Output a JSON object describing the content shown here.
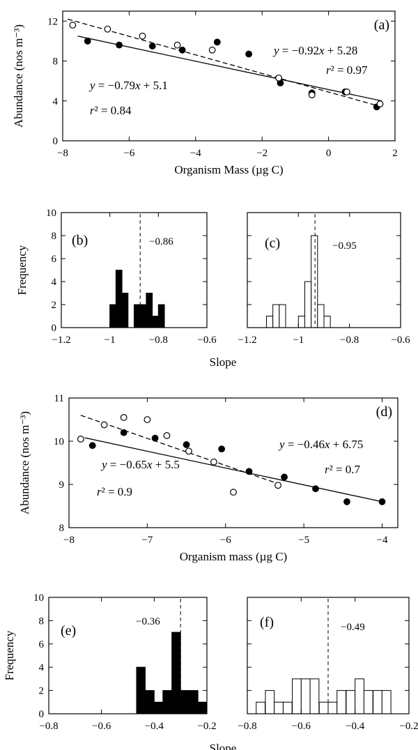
{
  "chart_data": [
    {
      "panel": "(a)",
      "type": "scatter",
      "xlabel": "Organism Mass (µg C)",
      "ylabel": "Abundance (nos m⁻³)",
      "xlim": [
        -8,
        2
      ],
      "ylim": [
        0,
        13
      ],
      "xticks": [
        "−8",
        "−6",
        "−4",
        "−2",
        "0",
        "2"
      ],
      "yticks": [
        "0",
        "4",
        "8",
        "12"
      ],
      "series": [
        {
          "marker": "filled",
          "line": "solid",
          "points": [
            [
              -7.25,
              10.0
            ],
            [
              -6.3,
              9.6
            ],
            [
              -5.3,
              9.5
            ],
            [
              -4.4,
              9.1
            ],
            [
              -3.35,
              9.9
            ],
            [
              -2.4,
              8.7
            ],
            [
              -1.45,
              5.8
            ],
            [
              -0.5,
              4.8
            ],
            [
              0.5,
              4.9
            ],
            [
              1.45,
              3.4
            ]
          ],
          "fit": {
            "slope": -0.79,
            "intercept": 5.1
          }
        },
        {
          "marker": "open",
          "line": "dashed",
          "points": [
            [
              -7.7,
              11.6
            ],
            [
              -6.65,
              11.2
            ],
            [
              -5.6,
              10.5
            ],
            [
              -4.55,
              9.6
            ],
            [
              -3.5,
              9.1
            ],
            [
              -1.5,
              6.3
            ],
            [
              -0.5,
              4.6
            ],
            [
              0.55,
              4.9
            ],
            [
              1.55,
              3.7
            ]
          ],
          "fit": {
            "slope": -0.92,
            "intercept": 5.28
          }
        }
      ],
      "annotations": [
        {
          "parts": [
            "y",
            " = −0.92",
            "x",
            " + 5.28"
          ]
        },
        {
          "parts": [
            "r",
            "² = 0.97"
          ]
        },
        {
          "parts": [
            "y",
            " = −0.79",
            "x",
            " + 5.1"
          ]
        },
        {
          "parts": [
            "r",
            "² = 0.84"
          ]
        }
      ]
    },
    {
      "panel": "(b)",
      "type": "bar",
      "style": "filled",
      "xlabel": "Slope",
      "ylabel": "Frequency",
      "xlim": [
        -1.2,
        -0.6
      ],
      "ylim": [
        0,
        10
      ],
      "xticks": [
        "−1.2",
        "−1",
        "−0.8",
        "−0.6"
      ],
      "yticks": [
        "0",
        "2",
        "4",
        "6",
        "8",
        "10"
      ],
      "bin_width": 0.025,
      "bins": [
        [
          -1.0,
          2
        ],
        [
          -0.975,
          5
        ],
        [
          -0.95,
          3
        ],
        [
          -0.9,
          2
        ],
        [
          -0.875,
          2
        ],
        [
          -0.85,
          3
        ],
        [
          -0.825,
          1
        ],
        [
          -0.8,
          2
        ]
      ],
      "reference_line": -0.875,
      "annotation": "−0.86"
    },
    {
      "panel": "(c)",
      "type": "bar",
      "style": "open",
      "xlabel": "",
      "ylabel": "",
      "xlim": [
        -1.2,
        -0.6
      ],
      "ylim": [
        0,
        10
      ],
      "xticks": [
        "−1.2",
        "−1",
        "−0.8",
        "−0.6"
      ],
      "yticks": [],
      "bin_width": 0.025,
      "bins": [
        [
          -1.125,
          1
        ],
        [
          -1.1,
          2
        ],
        [
          -1.075,
          2
        ],
        [
          -1.0,
          1
        ],
        [
          -0.975,
          4
        ],
        [
          -0.95,
          8
        ],
        [
          -0.925,
          2
        ],
        [
          -0.9,
          1
        ]
      ],
      "reference_line": -0.935,
      "annotation": "−0.95"
    },
    {
      "panel": "(d)",
      "type": "scatter",
      "xlabel": "Organism mass (µg C)",
      "ylabel": "Abundance (nos m⁻³)",
      "xlim": [
        -8,
        -3.8
      ],
      "ylim": [
        8,
        11
      ],
      "xticks": [
        "−8",
        "−7",
        "−6",
        "−5",
        "−4"
      ],
      "yticks": [
        "8",
        "9",
        "10",
        "11"
      ],
      "series": [
        {
          "marker": "filled",
          "line": "solid",
          "points": [
            [
              -7.7,
              9.9
            ],
            [
              -7.3,
              10.2
            ],
            [
              -6.9,
              10.07
            ],
            [
              -6.5,
              9.92
            ],
            [
              -6.05,
              9.82
            ],
            [
              -5.7,
              9.3
            ],
            [
              -5.25,
              9.17
            ],
            [
              -4.85,
              8.9
            ],
            [
              -4.45,
              8.6
            ],
            [
              -4.0,
              8.6
            ]
          ],
          "fit": {
            "slope": -0.46,
            "intercept": 6.75
          }
        },
        {
          "marker": "open",
          "line": "dashed",
          "points": [
            [
              -7.85,
              10.05
            ],
            [
              -7.55,
              10.38
            ],
            [
              -7.3,
              10.55
            ],
            [
              -7.0,
              10.5
            ],
            [
              -6.75,
              10.13
            ],
            [
              -6.47,
              9.77
            ],
            [
              -6.15,
              9.52
            ],
            [
              -5.9,
              8.82
            ],
            [
              -5.33,
              8.98
            ]
          ],
          "fit": {
            "slope": -0.65,
            "intercept": 5.5
          }
        }
      ],
      "annotations": [
        {
          "parts": [
            "y",
            " = −0.46",
            "x",
            " + 6.75"
          ]
        },
        {
          "parts": [
            "r",
            "² = 0.7"
          ]
        },
        {
          "parts": [
            "y",
            " = −0.65",
            "x",
            " + 5.5"
          ]
        },
        {
          "parts": [
            "r",
            "² = 0.9"
          ]
        }
      ]
    },
    {
      "panel": "(e)",
      "type": "bar",
      "style": "filled",
      "xlabel": "Slope",
      "ylabel": "Frequency",
      "xlim": [
        -0.8,
        -0.2
      ],
      "ylim": [
        0,
        10
      ],
      "xticks": [
        "−0.8",
        "−0.6",
        "−0.4",
        "−0.2"
      ],
      "yticks": [
        "0",
        "2",
        "4",
        "6",
        "8",
        "10"
      ],
      "bin_width": 0.033,
      "bins": [
        [
          -0.467,
          4
        ],
        [
          -0.433,
          2
        ],
        [
          -0.4,
          1
        ],
        [
          -0.367,
          2
        ],
        [
          -0.333,
          7
        ],
        [
          -0.3,
          2
        ],
        [
          -0.267,
          2
        ],
        [
          -0.233,
          1
        ]
      ],
      "reference_line": -0.3,
      "annotation": "−0.36"
    },
    {
      "panel": "(f)",
      "type": "bar",
      "style": "open",
      "xlabel": "",
      "ylabel": "",
      "xlim": [
        -0.8,
        -0.2
      ],
      "ylim": [
        0,
        10
      ],
      "xticks": [
        "−0.8",
        "−0.6",
        "−0.4",
        "−0.2"
      ],
      "yticks": [],
      "bin_width": 0.033,
      "bins": [
        [
          -0.767,
          1
        ],
        [
          -0.733,
          2
        ],
        [
          -0.7,
          1
        ],
        [
          -0.667,
          1
        ],
        [
          -0.633,
          3
        ],
        [
          -0.6,
          3
        ],
        [
          -0.567,
          3
        ],
        [
          -0.533,
          1
        ],
        [
          -0.5,
          1
        ],
        [
          -0.467,
          2
        ],
        [
          -0.433,
          2
        ],
        [
          -0.4,
          3
        ],
        [
          -0.367,
          2
        ],
        [
          -0.333,
          2
        ],
        [
          -0.3,
          2
        ]
      ],
      "reference_line": -0.5,
      "annotation": "−0.49"
    }
  ]
}
